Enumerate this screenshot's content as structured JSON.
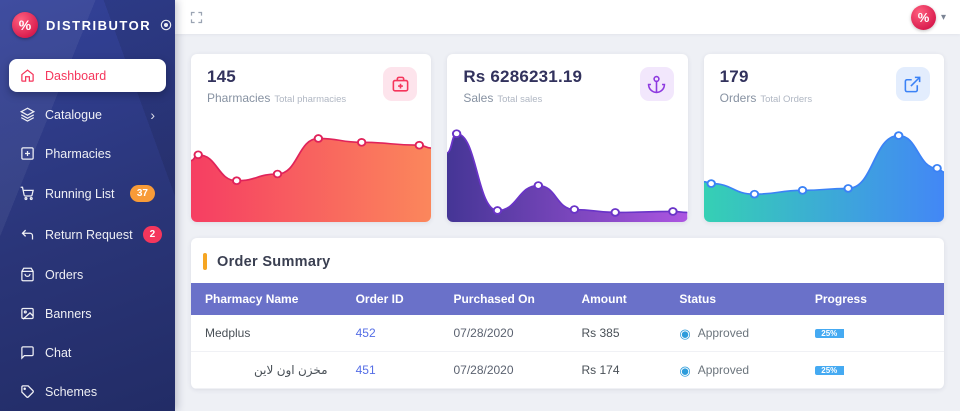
{
  "brand": {
    "name": "DISTRIBUTOR",
    "logo_glyph": "%"
  },
  "sidebar": {
    "items": [
      {
        "label": "Dashboard",
        "active": true
      },
      {
        "label": "Catalogue",
        "chevron": "›"
      },
      {
        "label": "Pharmacies"
      },
      {
        "label": "Running List",
        "badge": "37",
        "badge_color": "#f89b38"
      },
      {
        "label": "Return Request",
        "badge": "2",
        "badge_color": "#f5365c"
      },
      {
        "label": "Orders"
      },
      {
        "label": "Banners"
      },
      {
        "label": "Chat"
      },
      {
        "label": "Schemes"
      }
    ]
  },
  "topbar": {
    "avatar_glyph": "%",
    "caret": "▾"
  },
  "stat_cards": [
    {
      "value": "145",
      "label": "Pharmacies",
      "sublabel": "Total pharmacies",
      "accent": "#f5365c",
      "chip_bg": "#fde4ec",
      "line": "#e0235a",
      "fill_from": "#f5365c",
      "fill_to": "#fb8255",
      "points": [
        [
          0,
          36
        ],
        [
          3,
          30,
          1
        ],
        [
          19,
          57,
          1
        ],
        [
          36,
          50,
          1
        ],
        [
          53,
          13,
          1
        ],
        [
          71,
          17,
          1
        ],
        [
          95,
          20,
          1
        ],
        [
          100,
          23
        ]
      ]
    },
    {
      "value": "Rs 6286231.19",
      "label": "Sales",
      "sublabel": "Total sales",
      "accent": "#8e3ae0",
      "chip_bg": "#f2e7fc",
      "line": "#6a34c8",
      "fill_from": "#3d2d91",
      "fill_to": "#a94fe0",
      "points": [
        [
          0,
          28
        ],
        [
          4,
          8,
          1
        ],
        [
          21,
          88,
          1
        ],
        [
          38,
          62,
          1
        ],
        [
          53,
          87,
          1
        ],
        [
          70,
          90,
          1
        ],
        [
          94,
          89,
          1
        ],
        [
          100,
          90
        ]
      ]
    },
    {
      "value": "179",
      "label": "Orders",
      "sublabel": "Total Orders",
      "accent": "#3b82f6",
      "chip_bg": "#e3edfd",
      "line": "#3b82f6",
      "fill_from": "#2dceb1",
      "fill_to": "#3b82f6",
      "points": [
        [
          0,
          58
        ],
        [
          3,
          60,
          1
        ],
        [
          21,
          71,
          1
        ],
        [
          41,
          67,
          1
        ],
        [
          60,
          65,
          1
        ],
        [
          81,
          10,
          1
        ],
        [
          97,
          44,
          1
        ],
        [
          100,
          48
        ]
      ]
    }
  ],
  "order_summary": {
    "title": "Order Summary",
    "accent_color": "#f6a623",
    "header_bg": "#6a71c9",
    "status_color": "#2d9cdb",
    "progress_color": "#45aaf2",
    "columns": [
      "Pharmacy Name",
      "Order ID",
      "Purchased On",
      "Amount",
      "Status",
      "Progress"
    ],
    "rows": [
      {
        "pharmacy": "Medplus",
        "order_id": "452",
        "purchased_on": "07/28/2020",
        "amount": "Rs 385",
        "status": "Approved",
        "progress_label": "25%",
        "progress_pct": 25
      },
      {
        "pharmacy": "مخزن اون لاين",
        "order_id": "451",
        "purchased_on": "07/28/2020",
        "amount": "Rs 174",
        "status": "Approved",
        "progress_label": "25%",
        "progress_pct": 25
      }
    ]
  }
}
